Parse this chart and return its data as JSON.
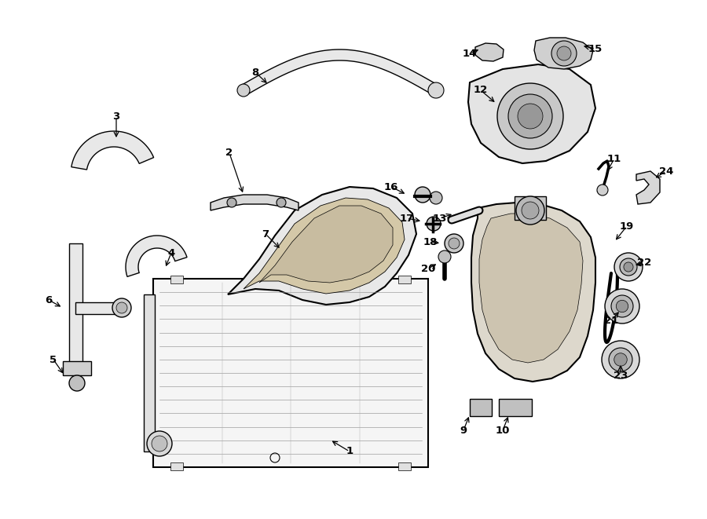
{
  "bg_color": "#ffffff",
  "line_color": "#000000",
  "fill_light": "#f0f0f0",
  "fill_mid": "#d8d0c0",
  "fill_dark": "#c0b8a8",
  "figsize": [
    9.0,
    6.61
  ],
  "dpi": 100
}
